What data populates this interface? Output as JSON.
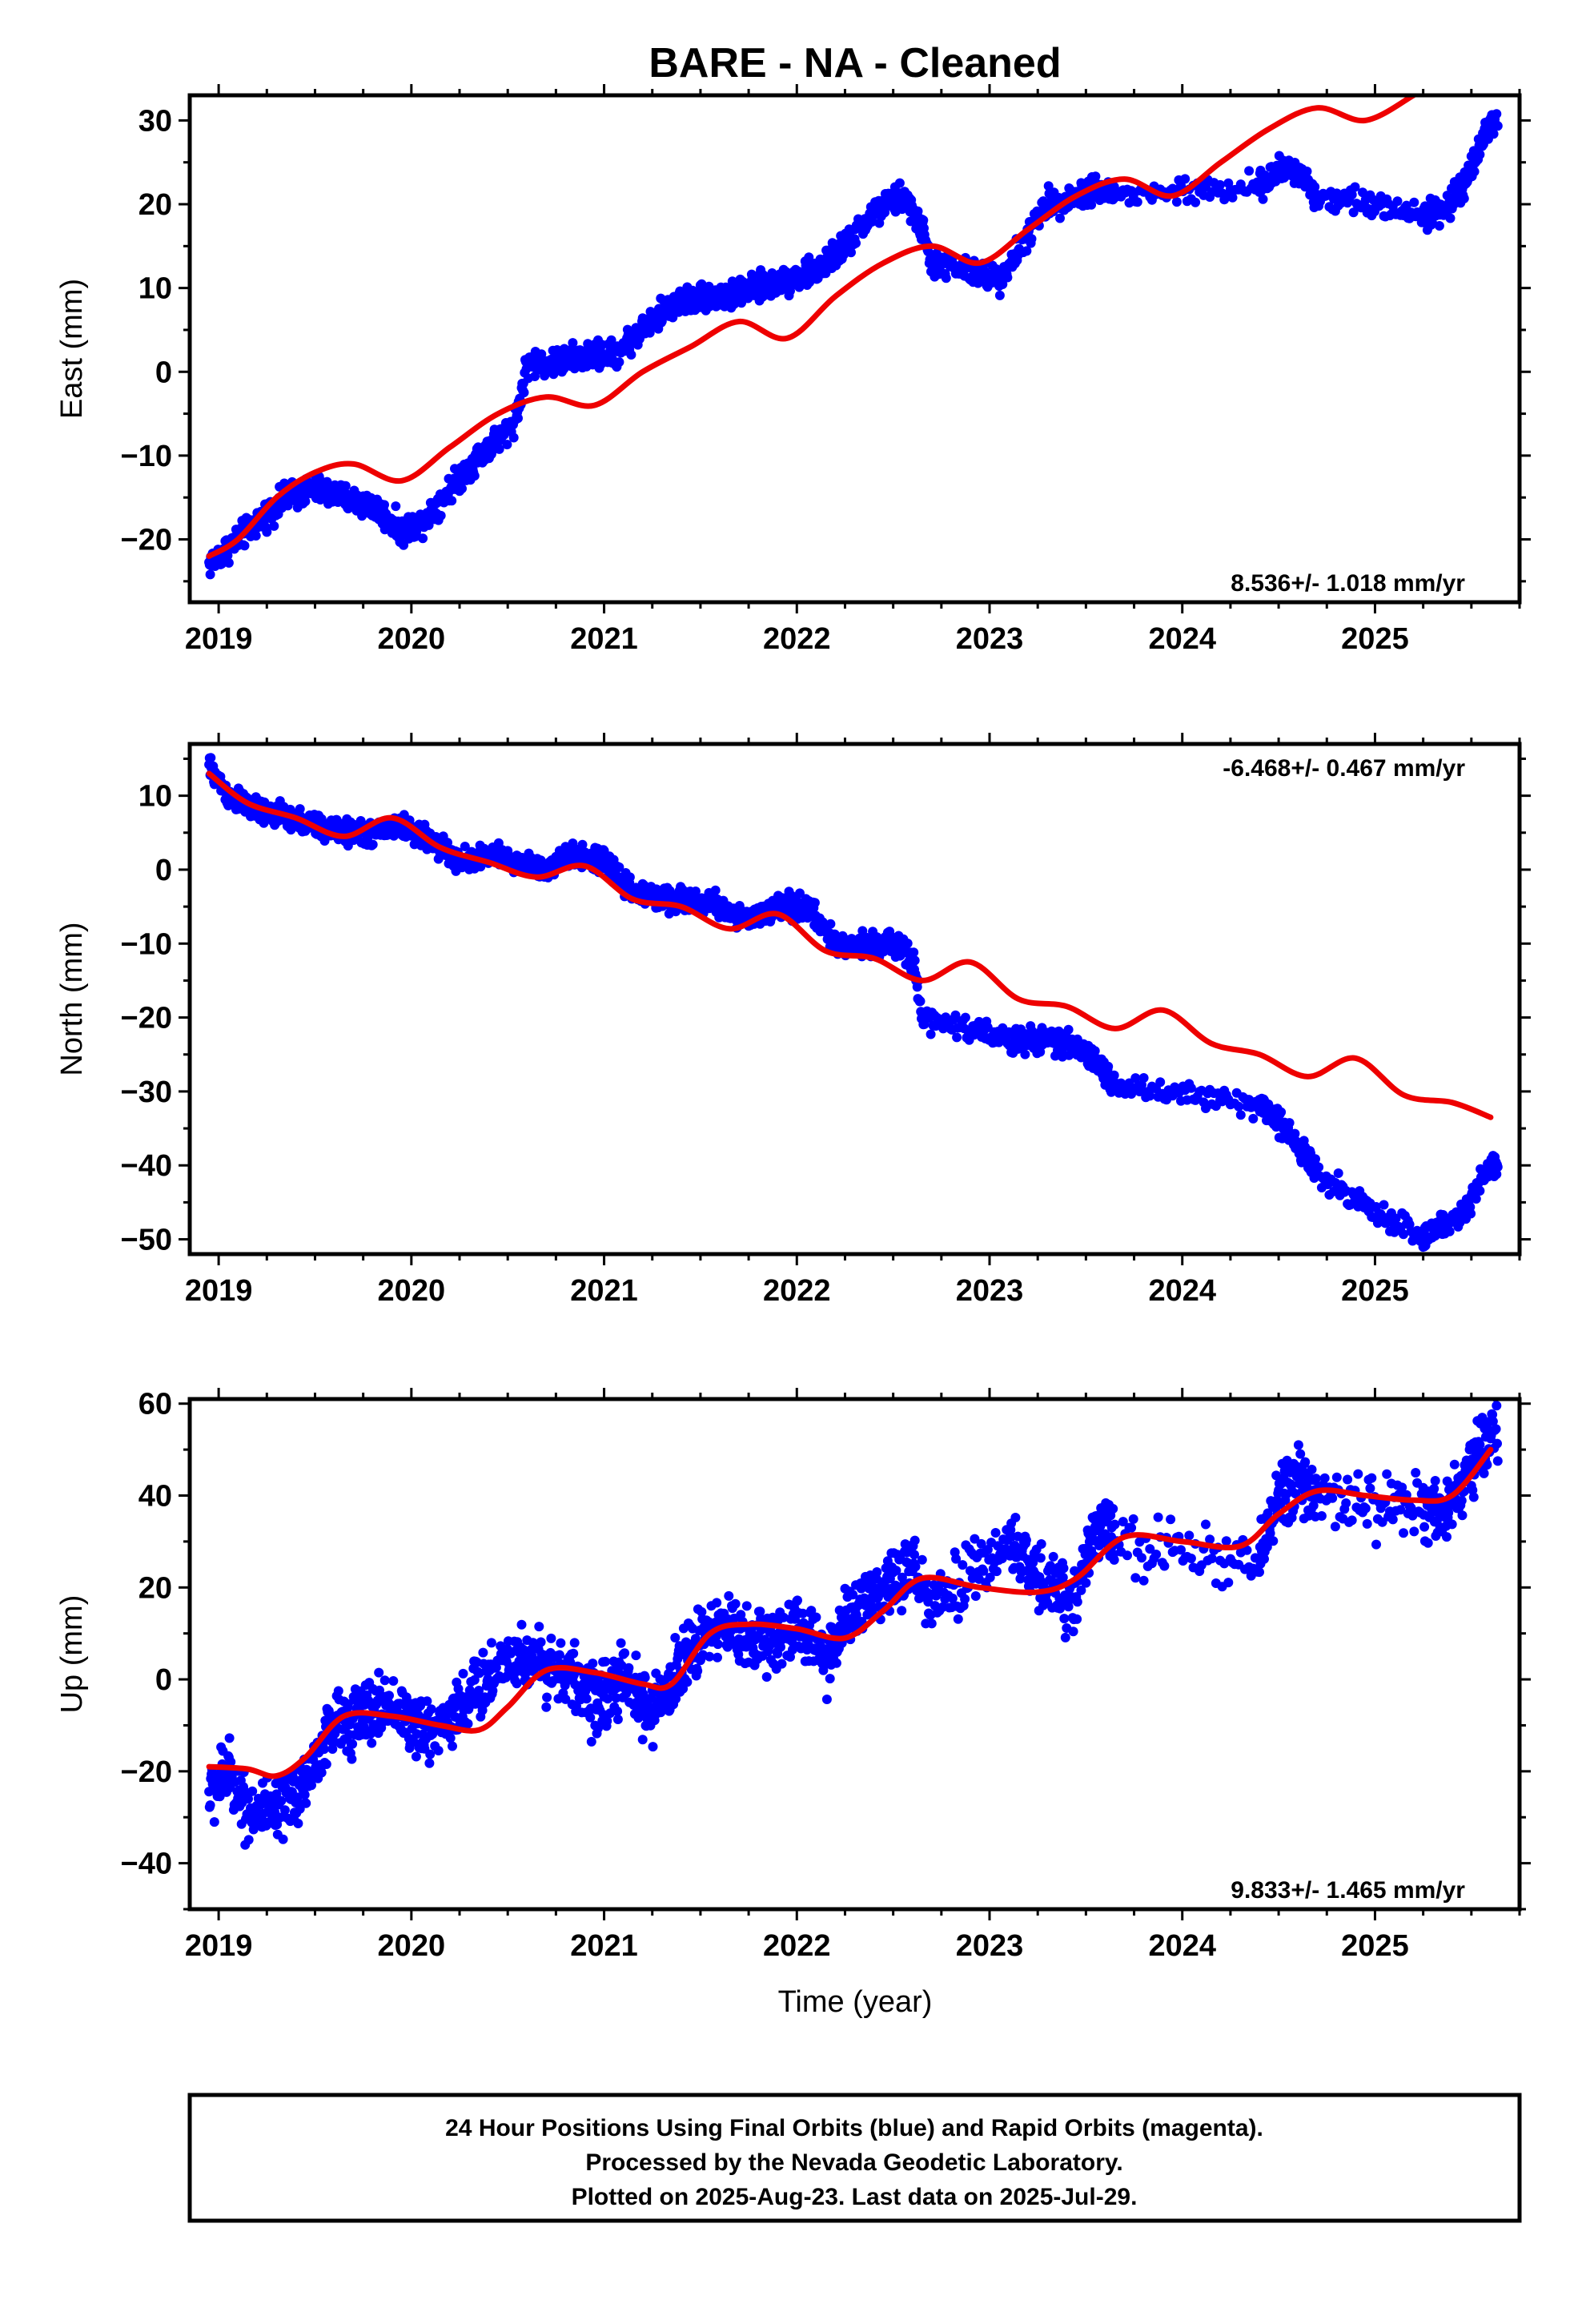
{
  "title": "BARE  - NA - Cleaned",
  "xlabel": "Time (year)",
  "colors": {
    "points": "#0000ff",
    "fit": "#ee0000",
    "axis": "#000000"
  },
  "footer": {
    "line1": "24 Hour Positions Using Final Orbits (blue) and Rapid Orbits (magenta).",
    "line2": "Processed by the Nevada Geodetic Laboratory.",
    "line3": "Plotted on 2025-Aug-23. Last data on 2025-Jul-29."
  },
  "chart_data": [
    {
      "type": "scatter",
      "component": "east",
      "ylabel": "East (mm)",
      "rate_label": "8.536+/- 1.018 mm/yr",
      "rate_position": "bottom-right",
      "xlim": [
        2018.85,
        2025.75
      ],
      "ylim": [
        -27.5,
        33
      ],
      "xticks": [
        "2019",
        "2020",
        "2021",
        "2022",
        "2023",
        "2024",
        "2025"
      ],
      "yticks": [
        "−20",
        "−10",
        "0",
        "10",
        "20",
        "30"
      ],
      "ytick_values": [
        -20,
        -10,
        0,
        10,
        20,
        30
      ],
      "observations": {
        "x": [
          2018.95,
          2019.05,
          2019.2,
          2019.35,
          2019.5,
          2019.65,
          2019.8,
          2019.95,
          2020.05,
          2020.2,
          2020.35,
          2020.5,
          2020.55,
          2020.6,
          2020.75,
          2020.9,
          2021.05,
          2021.2,
          2021.35,
          2021.5,
          2021.65,
          2021.8,
          2021.95,
          2022.1,
          2022.25,
          2022.4,
          2022.55,
          2022.65,
          2022.7,
          2023.05,
          2023.3,
          2023.45,
          2023.55,
          2023.65,
          2024.4,
          2024.5,
          2024.6,
          2024.7,
          2025.25,
          2025.35,
          2025.45,
          2025.6
        ],
        "y": [
          -23,
          -21,
          -18,
          -15,
          -14,
          -15,
          -16,
          -19,
          -18,
          -14,
          -10,
          -7,
          -5,
          1,
          1,
          2,
          2,
          5,
          8,
          9,
          9,
          10,
          11,
          12,
          15,
          19,
          21,
          17,
          13,
          11,
          20,
          21,
          22,
          21,
          22,
          24,
          24,
          21,
          19,
          19,
          22,
          30
        ]
      },
      "fit": {
        "x": [
          2018.95,
          2019.1,
          2019.3,
          2019.5,
          2019.7,
          2019.95,
          2020.2,
          2020.45,
          2020.7,
          2020.95,
          2021.2,
          2021.45,
          2021.7,
          2021.95,
          2022.2,
          2022.45,
          2022.7,
          2022.95,
          2023.2,
          2023.45,
          2023.7,
          2023.95,
          2024.2,
          2024.45,
          2024.7,
          2024.95,
          2025.2
        ],
        "y": [
          -22,
          -20,
          -15,
          -12,
          -11,
          -13,
          -9,
          -5,
          -3,
          -4,
          0,
          3,
          6,
          4,
          9,
          13,
          15,
          13,
          17,
          21,
          23,
          21,
          25,
          29,
          31.5,
          30,
          33
        ]
      }
    },
    {
      "type": "scatter",
      "component": "north",
      "ylabel": "North (mm)",
      "rate_label": "-6.468+/- 0.467 mm/yr",
      "rate_position": "top-right",
      "xlim": [
        2018.85,
        2025.75
      ],
      "ylim": [
        -52,
        17
      ],
      "xticks": [
        "2019",
        "2020",
        "2021",
        "2022",
        "2023",
        "2024",
        "2025"
      ],
      "yticks": [
        "−50",
        "−40",
        "−30",
        "−20",
        "−10",
        "0",
        "10"
      ],
      "ytick_values": [
        -50,
        -40,
        -30,
        -20,
        -10,
        0,
        10
      ],
      "observations": {
        "x": [
          2018.95,
          2019.05,
          2019.2,
          2019.35,
          2019.5,
          2019.65,
          2019.8,
          2019.95,
          2020.1,
          2020.25,
          2020.4,
          2020.55,
          2020.7,
          2020.85,
          2021.0,
          2021.15,
          2021.3,
          2021.45,
          2021.6,
          2021.75,
          2021.9,
          2022.05,
          2022.2,
          2022.35,
          2022.5,
          2022.6,
          2022.65,
          2023.1,
          2023.3,
          2023.45,
          2023.55,
          2023.65,
          2024.4,
          2024.5,
          2024.6,
          2024.7,
          2025.25,
          2025.35,
          2025.45,
          2025.6
        ],
        "y": [
          14,
          10,
          8,
          7,
          6,
          5,
          5,
          6,
          4,
          1,
          2,
          1,
          0,
          2,
          1,
          -3,
          -4,
          -4,
          -5,
          -7,
          -5,
          -5,
          -10,
          -10,
          -10,
          -12,
          -20,
          -23,
          -23,
          -24,
          -26,
          -29,
          -32,
          -34,
          -37,
          -41,
          -50,
          -48,
          -47,
          -40
        ]
      },
      "fit": {
        "x": [
          2018.95,
          2019.15,
          2019.4,
          2019.65,
          2019.9,
          2020.15,
          2020.4,
          2020.65,
          2020.9,
          2021.15,
          2021.4,
          2021.65,
          2021.9,
          2022.15,
          2022.4,
          2022.65,
          2022.9,
          2023.15,
          2023.4,
          2023.65,
          2023.9,
          2024.15,
          2024.4,
          2024.65,
          2024.9,
          2025.15,
          2025.4,
          2025.6
        ],
        "y": [
          13,
          9,
          7,
          4.5,
          7,
          3,
          1,
          -1,
          0.5,
          -4,
          -5,
          -8,
          -6,
          -11,
          -12,
          -15,
          -12.5,
          -17.5,
          -18.5,
          -21.5,
          -19,
          -23.5,
          -25,
          -28,
          -25.5,
          -30.5,
          -31.5,
          -33.5
        ]
      }
    },
    {
      "type": "scatter",
      "component": "up",
      "ylabel": "Up (mm)",
      "rate_label": "9.833+/- 1.465 mm/yr",
      "rate_position": "bottom-right",
      "xlim": [
        2018.85,
        2025.75
      ],
      "ylim": [
        -50,
        61
      ],
      "xticks": [
        "2019",
        "2020",
        "2021",
        "2022",
        "2023",
        "2024",
        "2025"
      ],
      "yticks": [
        "−40",
        "−20",
        "0",
        "20",
        "40",
        "60"
      ],
      "ytick_values": [
        -40,
        -20,
        0,
        20,
        40,
        60
      ],
      "observations": {
        "x": [
          2018.95,
          2019.05,
          2019.15,
          2019.3,
          2019.45,
          2019.6,
          2019.75,
          2019.9,
          2020.05,
          2020.2,
          2020.35,
          2020.5,
          2020.65,
          2020.8,
          2020.95,
          2021.1,
          2021.25,
          2021.4,
          2021.55,
          2021.7,
          2021.85,
          2022.0,
          2022.15,
          2022.3,
          2022.45,
          2022.6,
          2022.7,
          2023.1,
          2023.3,
          2023.45,
          2023.55,
          2023.65,
          2024.4,
          2024.5,
          2024.6,
          2024.7,
          2025.25,
          2025.35,
          2025.45,
          2025.6
        ],
        "y": [
          -25,
          -20,
          -28,
          -30,
          -22,
          -10,
          -8,
          -5,
          -12,
          -8,
          -2,
          5,
          4,
          2,
          -5,
          0,
          -8,
          3,
          12,
          10,
          8,
          12,
          5,
          15,
          18,
          25,
          15,
          30,
          20,
          18,
          35,
          30,
          25,
          40,
          45,
          38,
          38,
          36,
          42,
          55
        ]
      },
      "fit": {
        "x": [
          2018.95,
          2019.15,
          2019.3,
          2019.45,
          2019.65,
          2019.9,
          2020.15,
          2020.35,
          2020.5,
          2020.7,
          2020.95,
          2021.2,
          2021.35,
          2021.55,
          2021.75,
          2022.0,
          2022.25,
          2022.45,
          2022.65,
          2022.95,
          2023.25,
          2023.45,
          2023.7,
          2024.0,
          2024.3,
          2024.5,
          2024.7,
          2024.95,
          2025.2,
          2025.4,
          2025.6
        ],
        "y": [
          -19,
          -19.5,
          -21,
          -17,
          -8,
          -8,
          -10,
          -11,
          -6,
          2,
          1.5,
          -1,
          -1,
          10,
          12,
          11,
          9,
          15,
          22,
          20,
          19,
          22,
          31,
          30,
          29,
          36,
          41,
          40,
          39,
          40,
          50
        ]
      }
    }
  ]
}
